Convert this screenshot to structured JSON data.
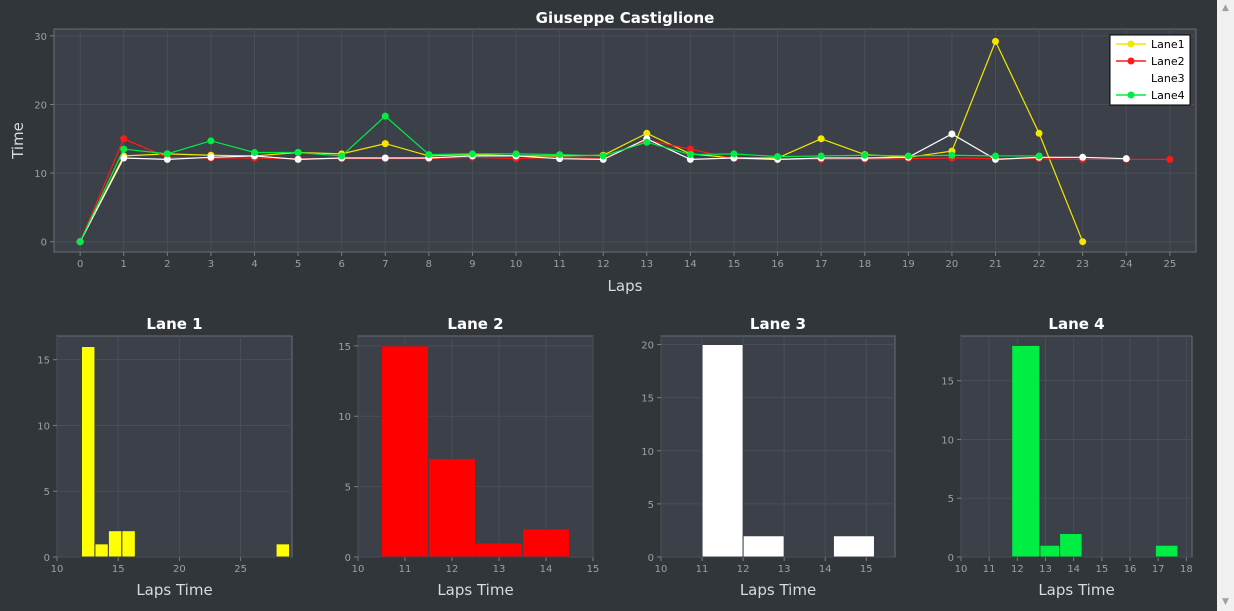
{
  "chart_data": [
    {
      "type": "line",
      "title": "Giuseppe Castiglione",
      "xlabel": "Laps",
      "ylabel": "Time",
      "xlim": [
        -0.6,
        25.6
      ],
      "ylim": [
        -1.5,
        31
      ],
      "xticks": [
        0,
        1,
        2,
        3,
        4,
        5,
        6,
        7,
        8,
        9,
        10,
        11,
        12,
        13,
        14,
        15,
        16,
        17,
        18,
        19,
        20,
        21,
        22,
        23,
        24,
        25
      ],
      "yticks": [
        0,
        10,
        20,
        30
      ],
      "grid": true,
      "legend": "top-right",
      "series": [
        {
          "name": "Lane1",
          "color": "#f5e600",
          "x": [
            0,
            1,
            2,
            3,
            4,
            5,
            6,
            7,
            8,
            9,
            10,
            11,
            12,
            13,
            14,
            15,
            16,
            17,
            18,
            19,
            20,
            21,
            22,
            23
          ],
          "values": [
            0,
            12.5,
            12.8,
            12.6,
            12.5,
            13.0,
            12.8,
            14.3,
            12.5,
            12.7,
            12.5,
            12.5,
            12.6,
            15.8,
            12.8,
            12.2,
            12.2,
            15.0,
            12.7,
            12.3,
            13.2,
            29.2,
            15.8,
            0
          ]
        },
        {
          "name": "Lane2",
          "color": "#ff1a1a",
          "x": [
            0,
            1,
            2,
            3,
            4,
            5,
            6,
            7,
            8,
            9,
            10,
            11,
            12,
            13,
            14,
            15,
            16,
            17,
            18,
            19,
            20,
            21,
            22,
            23,
            24,
            25
          ],
          "values": [
            0,
            15.0,
            12.3,
            12.2,
            12.2,
            12.1,
            12.1,
            12.1,
            12.1,
            12.3,
            12.1,
            12.3,
            12.1,
            14.8,
            13.5,
            12.1,
            12.0,
            12.0,
            12.0,
            12.1,
            12.2,
            12.1,
            12.1,
            12.0,
            12.0,
            12.0
          ]
        },
        {
          "name": "Lane3",
          "color": "#ffffff",
          "x": [
            0,
            1,
            2,
            3,
            4,
            5,
            6,
            7,
            8,
            9,
            10,
            11,
            12,
            13,
            14,
            15,
            16,
            17,
            18,
            19,
            20,
            21,
            22,
            23,
            24
          ],
          "values": [
            0,
            12.2,
            12.0,
            12.3,
            12.5,
            12.0,
            12.2,
            12.2,
            12.2,
            12.5,
            12.5,
            12.1,
            12.0,
            15.0,
            12.0,
            12.2,
            12.0,
            12.2,
            12.2,
            12.3,
            15.7,
            12.0,
            12.3,
            12.3,
            12.1
          ]
        },
        {
          "name": "Lane4",
          "color": "#00ee44",
          "x": [
            0,
            1,
            2,
            3,
            4,
            5,
            6,
            7,
            8,
            9,
            10,
            11,
            12,
            13,
            14,
            15,
            16,
            17,
            18,
            19,
            20,
            21,
            22
          ],
          "values": [
            0,
            13.5,
            12.8,
            14.7,
            13.0,
            13.0,
            12.5,
            18.3,
            12.7,
            12.8,
            12.8,
            12.7,
            12.5,
            14.5,
            12.7,
            12.8,
            12.4,
            12.5,
            12.6,
            12.5,
            12.6,
            12.5,
            12.5
          ]
        }
      ]
    },
    {
      "type": "bar",
      "title": "Lane 1",
      "xlabel": "Laps Time",
      "ylabel": "",
      "color": "#ffff00",
      "xlim": [
        10,
        29.2
      ],
      "ylim": [
        0,
        16.8
      ],
      "xticks": [
        10,
        15,
        20,
        25
      ],
      "yticks": [
        0,
        5,
        10,
        15
      ],
      "bins": [
        {
          "x0": 12.0,
          "x1": 13.1,
          "count": 16
        },
        {
          "x0": 13.1,
          "x1": 14.2,
          "count": 1
        },
        {
          "x0": 14.2,
          "x1": 15.3,
          "count": 2
        },
        {
          "x0": 15.3,
          "x1": 16.4,
          "count": 2
        },
        {
          "x0": 27.9,
          "x1": 29.0,
          "count": 1
        }
      ]
    },
    {
      "type": "bar",
      "title": "Lane 2",
      "xlabel": "Laps Time",
      "ylabel": "",
      "color": "#ff0000",
      "xlim": [
        10,
        15
      ],
      "ylim": [
        0,
        15.7
      ],
      "xticks": [
        10,
        11,
        12,
        13,
        14,
        15
      ],
      "yticks": [
        0,
        5,
        10,
        15
      ],
      "bins": [
        {
          "x0": 10.5,
          "x1": 11.5,
          "count": 15
        },
        {
          "x0": 11.5,
          "x1": 12.5,
          "count": 7
        },
        {
          "x0": 12.5,
          "x1": 13.5,
          "count": 1
        },
        {
          "x0": 13.5,
          "x1": 14.5,
          "count": 2
        }
      ]
    },
    {
      "type": "bar",
      "title": "Lane 3",
      "xlabel": "Laps Time",
      "ylabel": "",
      "color": "#ffffff",
      "xlim": [
        10,
        15.7
      ],
      "ylim": [
        0,
        20.8
      ],
      "xticks": [
        10,
        11,
        12,
        13,
        14,
        15
      ],
      "yticks": [
        0,
        5,
        10,
        15,
        20
      ],
      "bins": [
        {
          "x0": 11.0,
          "x1": 12.0,
          "count": 20
        },
        {
          "x0": 12.0,
          "x1": 13.0,
          "count": 2
        },
        {
          "x0": 14.2,
          "x1": 15.2,
          "count": 2
        }
      ]
    },
    {
      "type": "bar",
      "title": "Lane 4",
      "xlabel": "Laps Time",
      "ylabel": "",
      "color": "#00ee44",
      "xlim": [
        10,
        18.2
      ],
      "ylim": [
        0,
        18.8
      ],
      "xticks": [
        10,
        11,
        12,
        13,
        14,
        15,
        16,
        17,
        18
      ],
      "yticks": [
        0,
        5,
        10,
        15
      ],
      "bins": [
        {
          "x0": 11.8,
          "x1": 12.8,
          "count": 18
        },
        {
          "x0": 12.8,
          "x1": 13.5,
          "count": 1
        },
        {
          "x0": 13.5,
          "x1": 14.3,
          "count": 2
        },
        {
          "x0": 16.9,
          "x1": 17.7,
          "count": 1
        }
      ]
    }
  ],
  "scrollbar": {
    "up_arrow": "▲",
    "down_arrow": "▼"
  }
}
